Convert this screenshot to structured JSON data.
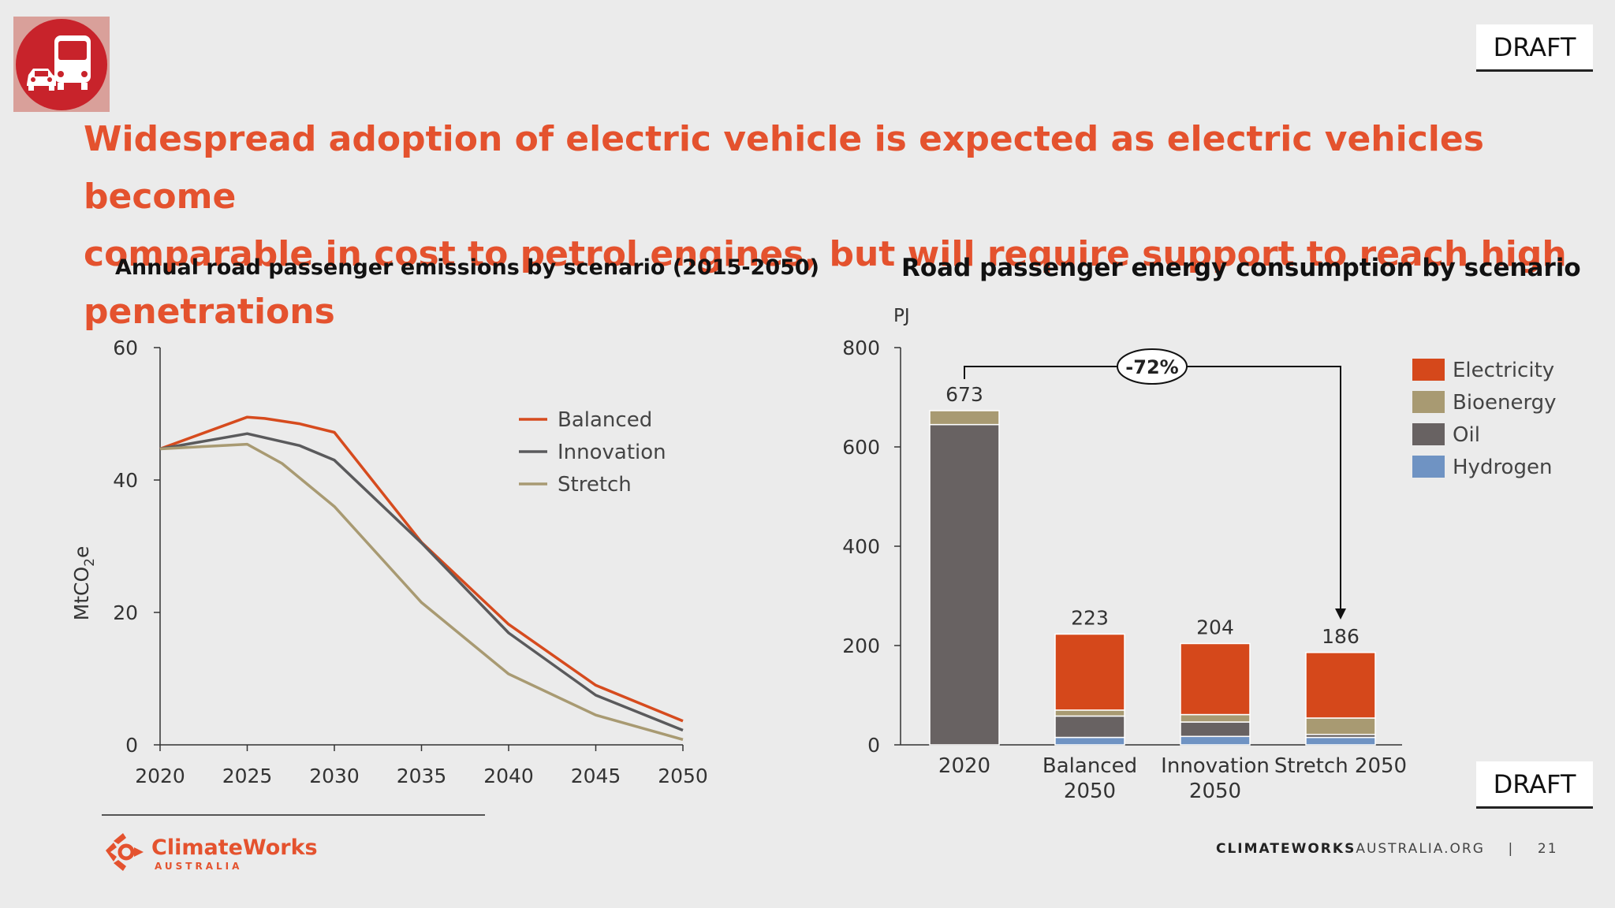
{
  "header": {
    "draft_top": "DRAFT",
    "draft_bottom": "DRAFT",
    "headline_line1": "Widespread adoption of electric vehicle is expected as electric vehicles become",
    "headline_line2": "comparable in cost to petrol engines, but will require support to reach high penetrations"
  },
  "logo_icon": "car-and-bus-icon",
  "footer": {
    "brand_name": "ClimateWorks",
    "brand_sub": "AUSTRALIA",
    "site_bold": "CLIMATEWORKS",
    "site_rest": "AUSTRALIA.ORG",
    "separator": "|",
    "page_number": "21"
  },
  "colors": {
    "headline": "#e4522e",
    "balanced": "#d64b1e",
    "innovation": "#5a5a5c",
    "stretch": "#a89a72",
    "electricity": "#d5481b",
    "bioenergy": "#a89a72",
    "oil": "#686262",
    "hydrogen": "#6f93c3"
  },
  "chart_data": [
    {
      "type": "line",
      "title": "Annual road passenger emissions by scenario (2015-2050)",
      "ylabel_main": "MtCO",
      "ylabel_sub": "2",
      "ylabel_end": "e",
      "ylim": [
        0,
        60
      ],
      "yticks": [
        "0",
        "20",
        "40",
        "60"
      ],
      "x": [
        2020,
        2025,
        2030,
        2035,
        2040,
        2045,
        2050
      ],
      "xticks": [
        "2020",
        "2025",
        "2030",
        "2035",
        "2040",
        "2045",
        "2050"
      ],
      "legend_position": "top-right",
      "series": [
        {
          "name": "Balanced",
          "color": "#d64b1e",
          "x": [
            2020,
            2025,
            2026,
            2028,
            2030,
            2035,
            2040,
            2045,
            2050
          ],
          "y": [
            44.7,
            49.5,
            49.3,
            48.5,
            47.2,
            30.6,
            18.2,
            9.0,
            3.6
          ]
        },
        {
          "name": "Innovation",
          "color": "#5a5a5c",
          "x": [
            2020,
            2025,
            2028,
            2030,
            2035,
            2040,
            2045,
            2050
          ],
          "y": [
            44.7,
            47.0,
            45.2,
            43.0,
            30.5,
            16.9,
            7.5,
            2.2
          ]
        },
        {
          "name": "Stretch",
          "color": "#a89a72",
          "x": [
            2020,
            2025,
            2027,
            2030,
            2035,
            2040,
            2045,
            2050
          ],
          "y": [
            44.7,
            45.4,
            42.5,
            36.0,
            21.5,
            10.7,
            4.5,
            0.8
          ]
        }
      ]
    },
    {
      "type": "bar",
      "stacked": true,
      "title": "Road passenger energy consumption by scenario",
      "unit": "PJ",
      "ylim": [
        0,
        800
      ],
      "yticks": [
        "0",
        "200",
        "400",
        "600",
        "800"
      ],
      "categories": [
        [
          "2020"
        ],
        [
          "Balanced",
          "2050"
        ],
        [
          "Innovation",
          "2050"
        ],
        [
          "Stretch 2050"
        ]
      ],
      "totals": [
        "673",
        "223",
        "204",
        "186"
      ],
      "annotation": "-72%",
      "legend_position": "right",
      "series": [
        {
          "name": "Hydrogen",
          "color": "#6f93c3",
          "values": [
            0,
            15,
            17,
            15
          ]
        },
        {
          "name": "Oil",
          "color": "#686262",
          "values": [
            645,
            43,
            29,
            6
          ]
        },
        {
          "name": "Bioenergy",
          "color": "#a89a72",
          "values": [
            28,
            12,
            15,
            33
          ]
        },
        {
          "name": "Electricity",
          "color": "#d5481b",
          "values": [
            0,
            153,
            143,
            132
          ]
        }
      ],
      "legend_order": [
        "Electricity",
        "Bioenergy",
        "Oil",
        "Hydrogen"
      ]
    }
  ]
}
